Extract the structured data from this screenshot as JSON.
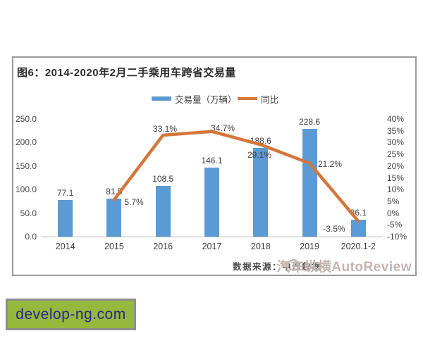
{
  "figure": {
    "title": "图6：2014-2020年2月二手乘用车跨省交易量",
    "source_note": "数据来源：中汽数据",
    "watermark": "汽车纵横AutoReview"
  },
  "chart_data": {
    "type": "bar",
    "subtype": "bar+line combo",
    "title": "图6：2014-2020年2月二手乘用车跨省交易量",
    "categories": [
      "2014",
      "2015",
      "2016",
      "2017",
      "2018",
      "2019",
      "2020.1-2"
    ],
    "series": [
      {
        "name": "交易量（万辆）",
        "type": "bar",
        "color": "#5b9bd5",
        "axis": "left",
        "values": [
          77.1,
          81.5,
          108.5,
          146.1,
          188.6,
          228.6,
          36.1
        ],
        "labels": [
          "77.1",
          "81.5",
          "108.5",
          "146.1",
          "188.6",
          "228.6",
          "36.1"
        ]
      },
      {
        "name": "同比",
        "type": "line",
        "color": "#d4763b",
        "axis": "right",
        "values": [
          null,
          5.7,
          33.1,
          34.7,
          29.1,
          21.2,
          -3.5
        ],
        "labels": [
          null,
          "5.7%",
          "33.1%",
          "34.7%",
          "29.1%",
          "21.2%",
          "-3.5%"
        ]
      }
    ],
    "left_axis": {
      "min": 0,
      "max": 250,
      "ticks": [
        "250.0",
        "200.0",
        "150.0",
        "100.0",
        "50.0",
        "0.0"
      ]
    },
    "right_axis": {
      "min": -10,
      "max": 40,
      "ticks": [
        "40%",
        "35%",
        "30%",
        "25%",
        "20%",
        "15%",
        "10%",
        "5%",
        "0%",
        "-5%",
        "-10%"
      ]
    },
    "legend_position": "top",
    "grid": false
  },
  "badge": {
    "text": "develop-ng.com",
    "bg": "#94b93c",
    "text_color": "#27278a"
  }
}
